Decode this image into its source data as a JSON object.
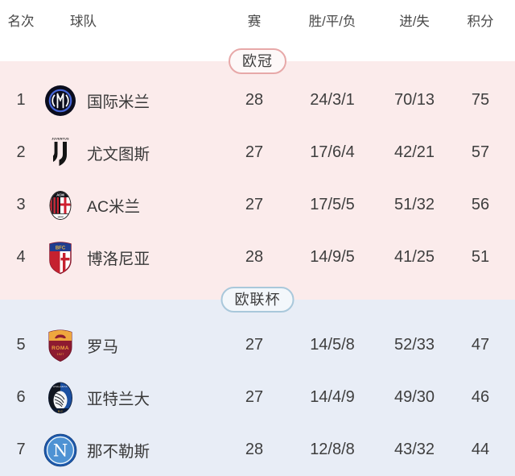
{
  "table": {
    "columns": {
      "rank": "名次",
      "team": "球队",
      "played": "赛",
      "wdl": "胜/平/负",
      "goals": "进/失",
      "points": "积分"
    },
    "sections": [
      {
        "label": "欧冠",
        "rows": [
          {
            "rank": "1",
            "team": "国际米兰",
            "played": "28",
            "wdl": "24/3/1",
            "goals": "70/13",
            "points": "75",
            "logo": "inter-milan"
          },
          {
            "rank": "2",
            "team": "尤文图斯",
            "played": "27",
            "wdl": "17/6/4",
            "goals": "42/21",
            "points": "57",
            "logo": "juventus"
          },
          {
            "rank": "3",
            "team": "AC米兰",
            "played": "27",
            "wdl": "17/5/5",
            "goals": "51/32",
            "points": "56",
            "logo": "ac-milan"
          },
          {
            "rank": "4",
            "team": "博洛尼亚",
            "played": "28",
            "wdl": "14/9/5",
            "goals": "41/25",
            "points": "51",
            "logo": "bologna"
          }
        ]
      },
      {
        "label": "欧联杯",
        "rows": [
          {
            "rank": "5",
            "team": "罗马",
            "played": "27",
            "wdl": "14/5/8",
            "goals": "52/33",
            "points": "47",
            "logo": "roma"
          },
          {
            "rank": "6",
            "team": "亚特兰大",
            "played": "27",
            "wdl": "14/4/9",
            "goals": "49/30",
            "points": "46",
            "logo": "atalanta"
          },
          {
            "rank": "7",
            "team": "那不勒斯",
            "played": "28",
            "wdl": "12/8/8",
            "goals": "43/32",
            "points": "44",
            "logo": "napoli"
          }
        ]
      }
    ],
    "colors": {
      "champions_section_bg": "#fbebeb",
      "europa_section_bg": "#e8edf6",
      "champions_badge_border": "#e7a8a8",
      "champions_badge_fill": "#fdf8f8",
      "europa_badge_border": "#a9c8db",
      "europa_badge_fill": "#f3f7fb",
      "text": "#3d3d3d"
    }
  }
}
